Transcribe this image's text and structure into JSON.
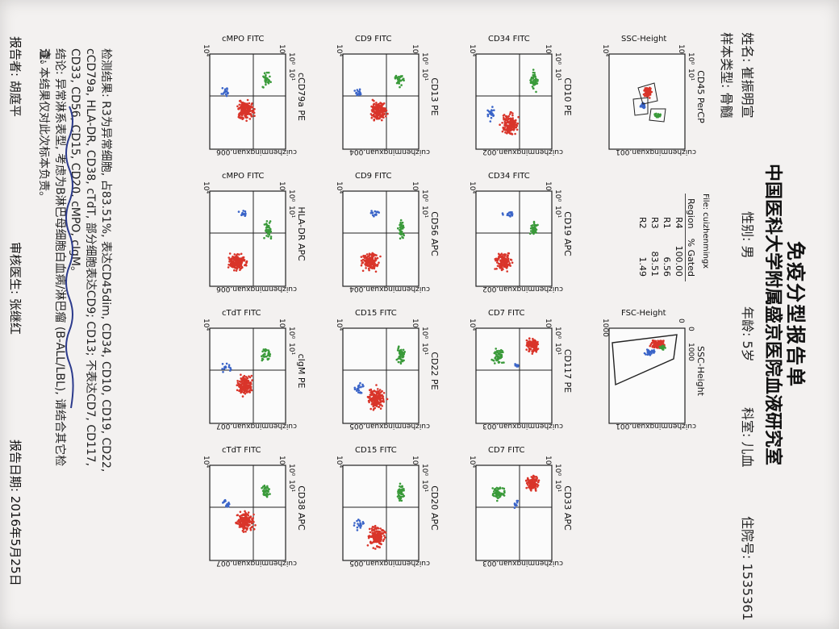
{
  "header": {
    "title": "免疫分型报告单",
    "institution": "中国医科大学附属盛京医院血液研究室"
  },
  "patient": {
    "name": "姓名: 崔振明宣",
    "sex": "性别: 男",
    "age": "年龄: 5岁",
    "dept": "科室: 儿血",
    "admission": "住院号: 1535361",
    "sample": "样本类型: 骨髓"
  },
  "colors": {
    "red": "#d9352a",
    "green": "#3a9a3a",
    "blue": "#3a64c8",
    "ink": "#2b3a8c"
  },
  "gates": {
    "file": "File: cuizhenmingx",
    "headers": [
      "Region",
      "% Gated"
    ],
    "rows": [
      [
        "R4",
        "100.00"
      ],
      [
        "R1",
        "6.56"
      ],
      [
        "R3",
        "83.51"
      ],
      [
        "R2",
        "1.49"
      ]
    ]
  },
  "panels": [
    {
      "title": "CD45 PerCP",
      "ylabel": "SSC-Height",
      "file": "cuizhenmingxuan.001",
      "kind": "cd45",
      "ticks": [
        "10⁰",
        "10¹",
        "10⁰",
        "10⁴"
      ]
    },
    {
      "title": "SSC-Height",
      "ylabel": "FSC-Height",
      "file": "cuizhenmingxuan.001",
      "kind": "fsc",
      "ticks": [
        "0",
        "1000",
        "0",
        "1000"
      ]
    },
    {
      "title": "CD10 PE",
      "ylabel": "CD34 FITC",
      "file": "cuizhenmingxuan.002",
      "kind": "topspread",
      "ticks": [
        "10⁰",
        "10¹",
        "10⁰",
        "10⁴"
      ]
    },
    {
      "title": "CD19 APC",
      "ylabel": "CD34 FITC",
      "file": "cuizhenmingxuan.002",
      "kind": "rightlow",
      "ticks": [
        "10⁰",
        "10¹",
        "10⁰",
        "10⁴"
      ]
    },
    {
      "title": "CD117 PE",
      "ylabel": "CD7 FITC",
      "file": "cuizhenmingxuan.003",
      "kind": "leftspread",
      "ticks": [
        "10⁰",
        "10¹",
        "10⁰",
        "10⁴"
      ]
    },
    {
      "title": "CD33 APC",
      "ylabel": "CD7 FITC",
      "file": "cuizhenmingxuan.003",
      "kind": "leftspread",
      "ticks": [
        "10⁰",
        "10¹",
        "10⁰",
        "10⁴"
      ]
    },
    {
      "title": "CD13 PE",
      "ylabel": "CD9 FITC",
      "file": "cuizhenmingxuan.004",
      "kind": "center",
      "ticks": [
        "10⁰",
        "10¹",
        "10⁰",
        "10⁴"
      ]
    },
    {
      "title": "CD56 APC",
      "ylabel": "CD9 FITC",
      "file": "cuizhenmingxuan.004",
      "kind": "rightlow",
      "ticks": [
        "10⁰",
        "10¹",
        "10⁰",
        "10⁴"
      ]
    },
    {
      "title": "CD22 PE",
      "ylabel": "CD15 FITC",
      "file": "cuizhenmingxuan.005",
      "kind": "topspread",
      "ticks": [
        "10⁰",
        "10¹",
        "10⁰",
        "10⁴"
      ]
    },
    {
      "title": "CD20 APC",
      "ylabel": "CD15 FITC",
      "file": "cuizhenmingxuan.005",
      "kind": "topspread",
      "ticks": [
        "10⁰",
        "10¹",
        "10⁰",
        "10⁴"
      ]
    },
    {
      "title": "cCD79a PE",
      "ylabel": "cMPO FITC",
      "file": "cuizhenmingxuan.006",
      "kind": "center",
      "ticks": [
        "10⁰",
        "10¹",
        "10⁰",
        "10⁴"
      ]
    },
    {
      "title": "HLA-DR APC",
      "ylabel": "cMPO FITC",
      "file": "cuizhenmingxuan.006",
      "kind": "rightlow",
      "ticks": [
        "10⁰",
        "10¹",
        "10⁰",
        "10⁴"
      ]
    },
    {
      "title": "cIgM PE",
      "ylabel": "cTdT FITC",
      "file": "cuizhenmingxuan.007",
      "kind": "center",
      "ticks": [
        "10⁰",
        "10¹",
        "10⁰",
        "10⁴"
      ]
    },
    {
      "title": "CD38 APC",
      "ylabel": "cTdT FITC",
      "file": "cuizhenmingxuan.007",
      "kind": "center",
      "ticks": [
        "10⁰",
        "10¹",
        "10⁰",
        "10⁴"
      ]
    }
  ],
  "result": {
    "line1": "检测结果: R3为异常细胞, 占83.51%, 表达CD45dim, CD34, CD10, CD19, CD22,",
    "line2": "cCD79a, HLA-DR, CD38, cTdT, 部分细胞表达CD9; CD13; 不表达CD7, CD117,",
    "line3": "CD33, CD56, CD15, CD20, cMPO, cIgM。",
    "line4": "结论: 异常淋系表型, 考虑为B淋巴母细胞白血病/淋巴瘤 (B-ALL/LBL), 请结合其它检",
    "line5": "查。"
  },
  "note": "注: 本结果仅对此次标本负责。",
  "signatures": {
    "reporter": "报告者: 胡庭平",
    "reviewer": "审核医生: 张继红",
    "date": "报告日期: 2016年5月25日"
  }
}
